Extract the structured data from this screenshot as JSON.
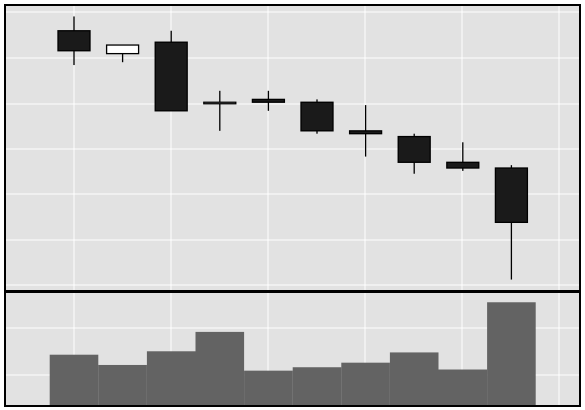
{
  "chart_data": {
    "type": "candlestick",
    "grid": true,
    "background": "#e2e2e2",
    "colors": {
      "up_fill": "#ffffff",
      "down_fill": "#1a1a1a",
      "wick": "#000000",
      "volume_bar": "#636363",
      "grid": "#ffffff",
      "border": "#000000"
    },
    "price_ylim": [
      0,
      100
    ],
    "candles": [
      {
        "open": 91,
        "high": 96,
        "low": 79,
        "close": 84
      },
      {
        "open": 83,
        "high": 86,
        "low": 80,
        "close": 86
      },
      {
        "open": 87,
        "high": 91,
        "low": 63,
        "close": 63
      },
      {
        "open": 66,
        "high": 70,
        "low": 56,
        "close": 66
      },
      {
        "open": 67,
        "high": 70,
        "low": 63,
        "close": 66
      },
      {
        "open": 66,
        "high": 67,
        "low": 55,
        "close": 56
      },
      {
        "open": 56,
        "high": 65,
        "low": 47,
        "close": 55
      },
      {
        "open": 54,
        "high": 55,
        "low": 41,
        "close": 45
      },
      {
        "open": 45,
        "high": 52,
        "low": 42,
        "close": 43
      },
      {
        "open": 43,
        "high": 44,
        "low": 4,
        "close": 24
      }
    ],
    "volume_ylim": [
      0,
      100
    ],
    "volumes": [
      45,
      36,
      48,
      65,
      31,
      34,
      38,
      47,
      32,
      91
    ]
  }
}
